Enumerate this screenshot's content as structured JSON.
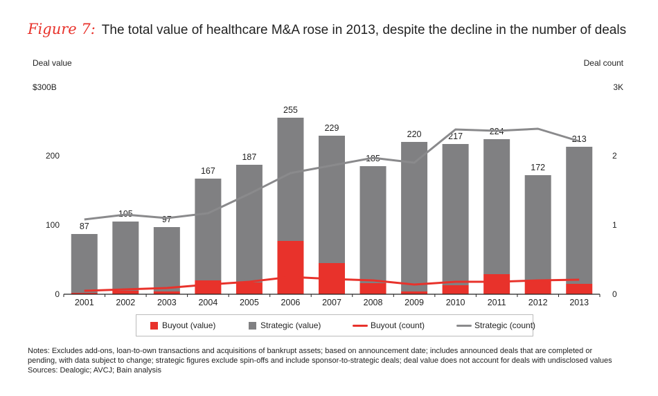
{
  "title": {
    "figure": "Figure 7:",
    "text": "The total value of healthcare M&A rose in 2013, despite the decline in the number of deals"
  },
  "colors": {
    "buyout": "#e8322b",
    "strategic": "#808082",
    "strategic_line": "#8a8a8c"
  },
  "chart_data": {
    "type": "bar",
    "stacked": true,
    "title": "The total value of healthcare M&A rose in 2013, despite the decline in the number of deals",
    "categories": [
      "2001",
      "2002",
      "2003",
      "2004",
      "2005",
      "2006",
      "2007",
      "2008",
      "2009",
      "2010",
      "2011",
      "2012",
      "2013"
    ],
    "totals": [
      "87",
      "105",
      "97",
      "167",
      "187",
      "255",
      "229",
      "185",
      "220",
      "217",
      "224",
      "172",
      "213"
    ],
    "series": [
      {
        "name": "Buyout (value)",
        "type": "bar",
        "axis": "left",
        "values": [
          2,
          5,
          4,
          20,
          17,
          77,
          45,
          16,
          4,
          13,
          29,
          20,
          15
        ]
      },
      {
        "name": "Strategic (value)",
        "type": "bar",
        "axis": "left",
        "values": [
          85,
          100,
          93,
          147,
          170,
          178,
          184,
          169,
          216,
          204,
          195,
          152,
          198
        ]
      },
      {
        "name": "Buyout (count)",
        "type": "line",
        "axis": "right",
        "values": [
          0.05,
          0.07,
          0.09,
          0.14,
          0.18,
          0.25,
          0.22,
          0.2,
          0.14,
          0.18,
          0.18,
          0.2,
          0.21
        ]
      },
      {
        "name": "Strategic (count)",
        "type": "line",
        "axis": "right",
        "values": [
          1.08,
          1.15,
          1.1,
          1.17,
          1.45,
          1.75,
          1.86,
          1.97,
          1.9,
          2.38,
          2.36,
          2.39,
          2.21
        ]
      }
    ],
    "left_axis": {
      "label": "Deal value",
      "unit_label": "$300B",
      "ticks": [
        "0",
        "100",
        "200"
      ],
      "range": [
        0,
        300
      ]
    },
    "right_axis": {
      "label": "Deal count",
      "unit_label": "3K",
      "ticks": [
        "0",
        "1",
        "2"
      ],
      "range": [
        0,
        3
      ]
    }
  },
  "legend": [
    {
      "label": "Buyout (value)",
      "kind": "swatch",
      "color": "#e8322b"
    },
    {
      "label": "Strategic (value)",
      "kind": "swatch",
      "color": "#808082"
    },
    {
      "label": "Buyout (count)",
      "kind": "line",
      "color": "#e8322b"
    },
    {
      "label": "Strategic (count)",
      "kind": "line",
      "color": "#8a8a8c"
    }
  ],
  "notes": {
    "line1": "Notes: Excludes add-ons, loan-to-own transactions and acquisitions of bankrupt assets; based on announcement date; includes announced deals that are completed or",
    "line2": "pending, with data subject to change; strategic figures exclude spin-offs and include sponsor-to-strategic deals; deal value does not account for deals with undisclosed values",
    "line3": "Sources: Dealogic; AVCJ; Bain analysis"
  }
}
